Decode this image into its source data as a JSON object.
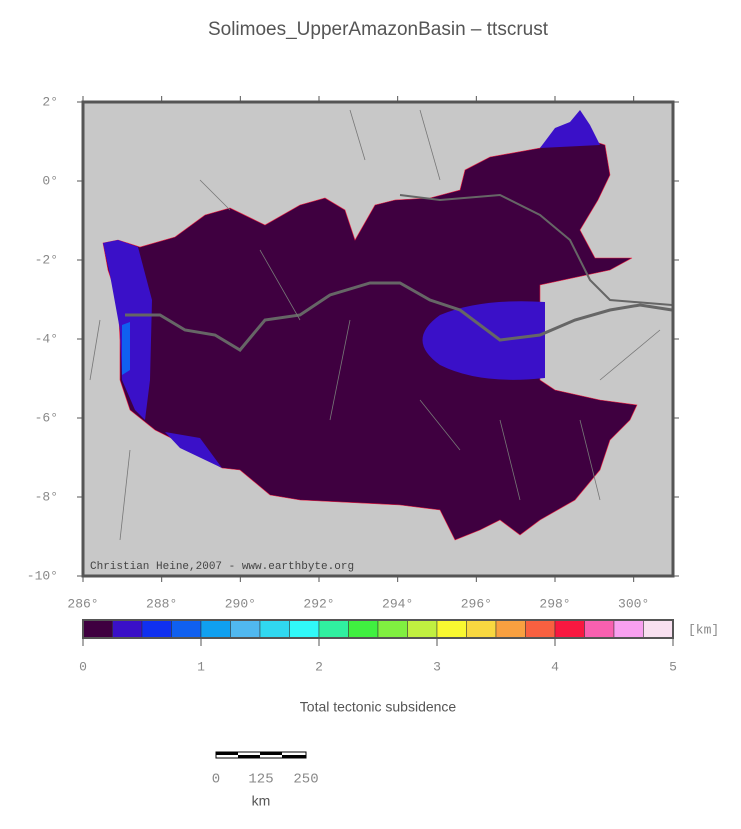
{
  "title": "Solimoes_UpperAmazonBasin – ttscrust",
  "map": {
    "lat_labels": [
      "2°",
      "0°",
      "-2°",
      "-4°",
      "-6°",
      "-8°",
      "-10°"
    ],
    "lon_labels": [
      "286°",
      "288°",
      "290°",
      "292°",
      "294°",
      "296°",
      "298°",
      "300°"
    ],
    "credit": "Christian Heine,2007 - www.earthbyte.org"
  },
  "colorbar": {
    "unit": "[km]",
    "ticks": [
      0,
      1,
      2,
      3,
      4,
      5
    ],
    "colors": [
      "#3f0040",
      "#3a10c8",
      "#1030f0",
      "#1060f0",
      "#10a0f0",
      "#50b8f0",
      "#30d8f0",
      "#30f8f8",
      "#30f0a0",
      "#40f040",
      "#80f040",
      "#c0f040",
      "#f8f830",
      "#f8d840",
      "#f8a040",
      "#f86040",
      "#f81840",
      "#f860b0",
      "#f8a0f0",
      "#f8e0f0"
    ],
    "caption": "Total tectonic subsidence"
  },
  "scalebar": {
    "labels": [
      "0",
      "125",
      "250"
    ],
    "unit": "km"
  }
}
